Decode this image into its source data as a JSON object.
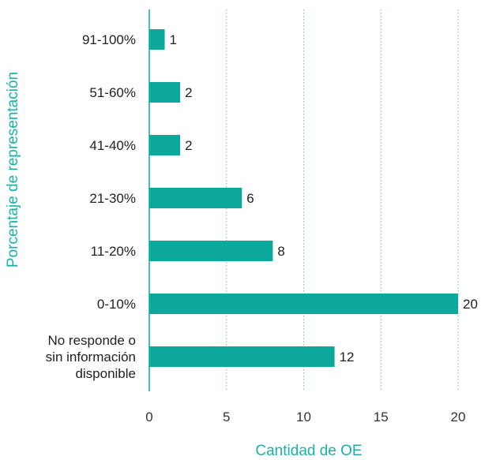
{
  "chart_data": {
    "type": "bar",
    "orientation": "horizontal",
    "categories": [
      [
        "91-100%"
      ],
      [
        "51-60%"
      ],
      [
        "41-40%"
      ],
      [
        "21-30%"
      ],
      [
        "11-20%"
      ],
      [
        "0-10%"
      ],
      [
        "No responde o",
        "sin información",
        "disponible"
      ]
    ],
    "values": [
      1,
      2,
      2,
      6,
      8,
      20,
      12
    ],
    "xlabel": "Cantidad de OE",
    "ylabel": "Porcentaje de representación",
    "xlim": [
      0,
      20
    ],
    "xticks": [
      "0",
      "5",
      "10",
      "15",
      "20"
    ],
    "grid": "vertical dotted",
    "colors": {
      "bar": "#0aa99b",
      "axis_title": "#17b3a5",
      "grid": "#5fc4b9",
      "axis_line": "#0aa99b"
    }
  }
}
